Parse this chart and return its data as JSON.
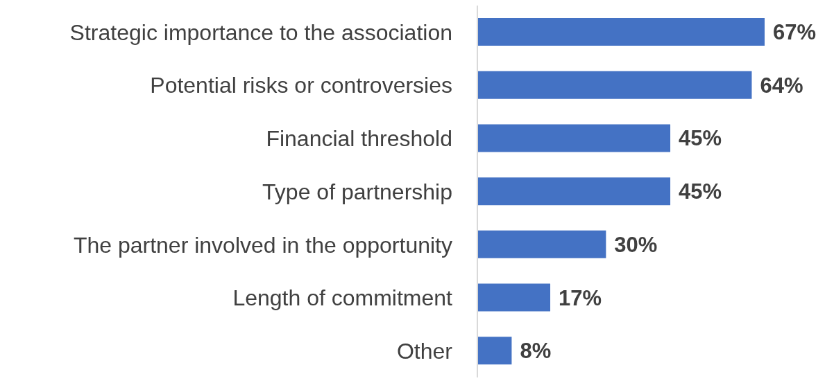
{
  "chart_data": {
    "type": "bar",
    "orientation": "horizontal",
    "categories": [
      "Strategic importance to the association",
      "Potential risks or controversies",
      "Financial threshold",
      "Type of partnership",
      "The partner involved in the opportunity",
      "Length of commitment",
      "Other"
    ],
    "values": [
      67,
      64,
      45,
      45,
      30,
      17,
      8
    ],
    "value_labels": [
      "67%",
      "64%",
      "45%",
      "45%",
      "30%",
      "17%",
      "8%"
    ],
    "color": "#4472c4",
    "grid": false
  }
}
